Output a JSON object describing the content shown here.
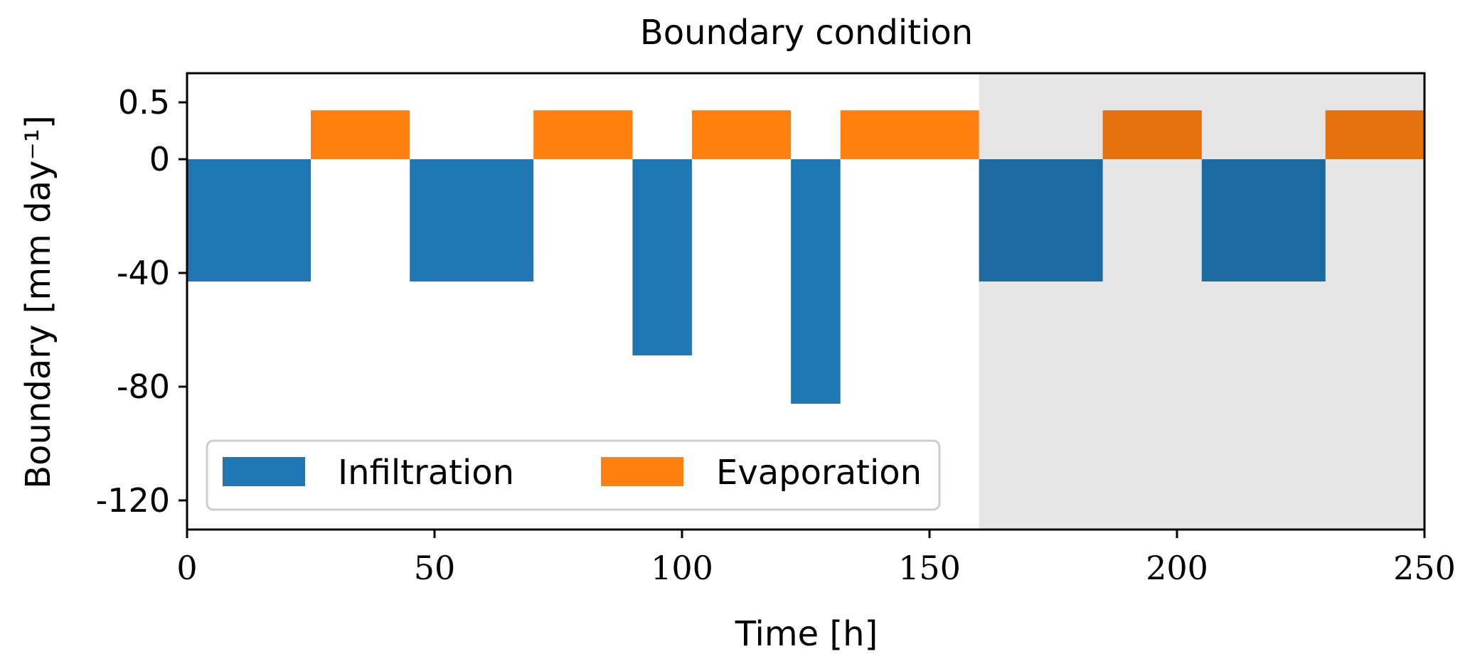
{
  "chart_data": {
    "type": "bar",
    "title": "Boundary condition",
    "xlabel": "Time [h]",
    "ylabel": "Boundary [mm day⁻¹]",
    "xlim": [
      0,
      250
    ],
    "x_ticks": [
      0,
      50,
      100,
      150,
      200,
      250
    ],
    "y_ticks": [
      {
        "value": 0.5,
        "label": "0.5"
      },
      {
        "value": 0,
        "label": "0"
      },
      {
        "value": -40,
        "label": "-40"
      },
      {
        "value": -80,
        "label": "-80"
      },
      {
        "value": -120,
        "label": "-120"
      }
    ],
    "y_axis_note": "piecewise scale: 0 to 0.5 expanded above zero, linear 0 to -120 below",
    "grid": false,
    "legend_position": "lower-left",
    "shaded_region": {
      "x_start": 160,
      "x_end": 250,
      "color": "#e5e5e5"
    },
    "series": [
      {
        "name": "Infiltration",
        "color": "#1f77b4",
        "bars": [
          {
            "x_start": 0,
            "x_end": 25,
            "value": -43
          },
          {
            "x_start": 45,
            "x_end": 70,
            "value": -43
          },
          {
            "x_start": 90,
            "x_end": 102,
            "value": -69
          },
          {
            "x_start": 122,
            "x_end": 132,
            "value": -86
          },
          {
            "x_start": 160,
            "x_end": 185,
            "value": -43
          },
          {
            "x_start": 205,
            "x_end": 230,
            "value": -43
          }
        ]
      },
      {
        "name": "Evaporation",
        "color": "#ff7f0e",
        "bars": [
          {
            "x_start": 25,
            "x_end": 45,
            "value": 0.43
          },
          {
            "x_start": 70,
            "x_end": 90,
            "value": 0.43
          },
          {
            "x_start": 102,
            "x_end": 122,
            "value": 0.43
          },
          {
            "x_start": 132,
            "x_end": 160,
            "value": 0.43
          },
          {
            "x_start": 185,
            "x_end": 205,
            "value": 0.43
          },
          {
            "x_start": 230,
            "x_end": 250,
            "value": 0.43
          }
        ]
      }
    ]
  }
}
